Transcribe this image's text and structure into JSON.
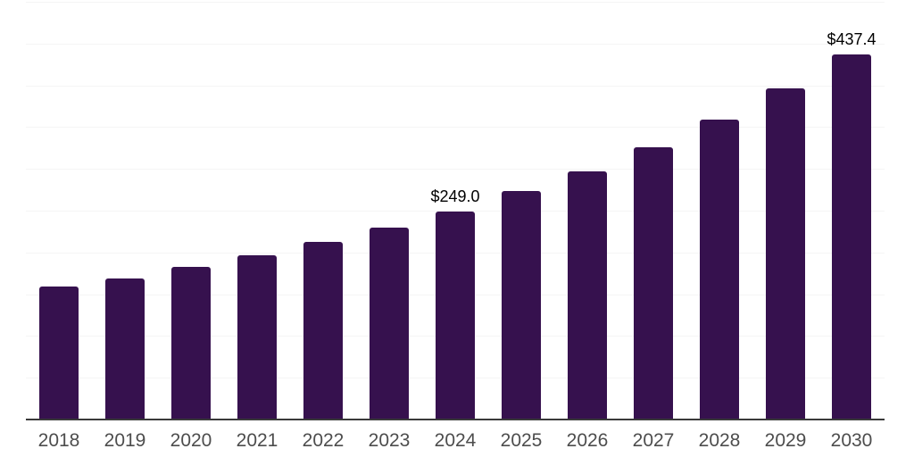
{
  "chart_data": {
    "type": "bar",
    "categories": [
      "2018",
      "2019",
      "2020",
      "2021",
      "2022",
      "2023",
      "2024",
      "2025",
      "2026",
      "2027",
      "2028",
      "2029",
      "2030"
    ],
    "values": [
      159.2,
      169.1,
      183.0,
      196.6,
      212.6,
      229.7,
      249.0,
      273.2,
      297.3,
      326.2,
      359.0,
      396.4,
      437.4
    ],
    "data_labels": [
      null,
      null,
      null,
      null,
      null,
      null,
      "$249.0",
      null,
      null,
      null,
      null,
      null,
      "$437.4"
    ],
    "ylim": [
      0,
      500
    ],
    "grid": "on",
    "grid_step": 50,
    "legend": "none",
    "colors": {
      "bar": "#36114E",
      "gridline": "#f5f5f5",
      "axis_line": "#3a3a3a",
      "tick_label": "#4d4d4d",
      "data_label": "#000000",
      "background": "#ffffff"
    }
  }
}
